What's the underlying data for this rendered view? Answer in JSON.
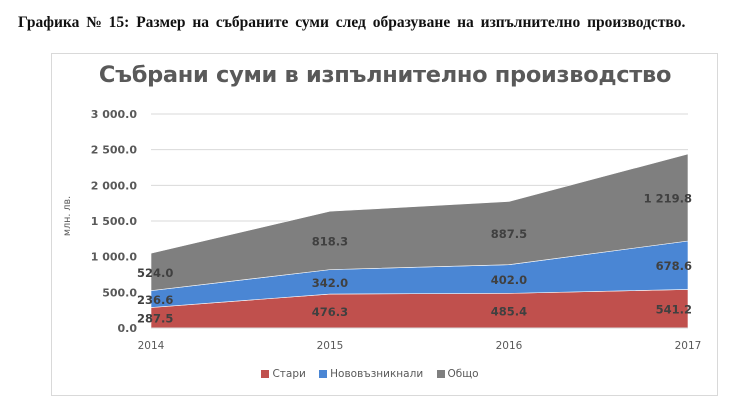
{
  "caption": "Графика № 15: Размер на събраните суми след образуване на изпълнително производство.",
  "chart_data": {
    "type": "area",
    "stacked": true,
    "title": "Събрани суми в изпълнително производство",
    "xlabel": "",
    "ylabel": "млн. лв.",
    "categories": [
      "2014",
      "2015",
      "2016",
      "2017"
    ],
    "series": [
      {
        "name": "Стари",
        "color": "#C0504D",
        "values": [
          287.5,
          476.3,
          485.4,
          541.2
        ],
        "labels": [
          "287.5",
          "476.3",
          "485.4",
          "541.2"
        ]
      },
      {
        "name": "Нововъзникнали",
        "color": "#4A86D4",
        "values": [
          236.6,
          342.0,
          402.0,
          678.6
        ],
        "labels": [
          "236.6",
          "342.0",
          "402.0",
          "678.6"
        ]
      },
      {
        "name": "Общо",
        "color": "#7F7F7F",
        "values": [
          524.0,
          818.3,
          887.5,
          1219.8
        ],
        "labels": [
          "524.0",
          "818.3",
          "887.5",
          "1 219.8"
        ]
      }
    ],
    "ylim": [
      0,
      3000
    ],
    "yticks": [
      0,
      500,
      1000,
      1500,
      2000,
      2500,
      3000
    ],
    "ytick_labels": [
      "0.0",
      "500.0",
      "1 000.0",
      "1 500.0",
      "2 000.0",
      "2 500.0",
      "3 000.0"
    ],
    "grid": true,
    "legend_position": "bottom"
  }
}
